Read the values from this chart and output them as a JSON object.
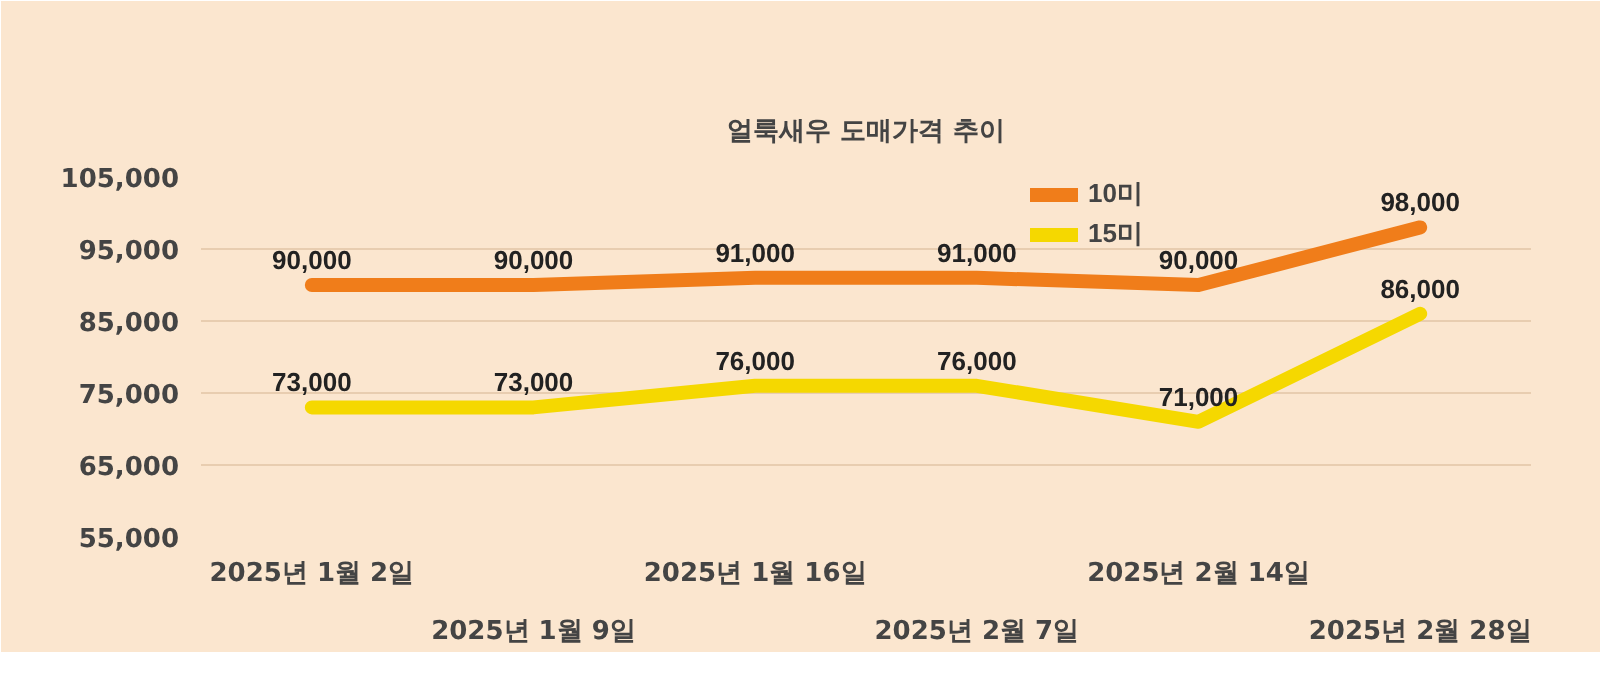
{
  "chart_data": {
    "type": "line",
    "title": "얼룩새우 도매가격 추이",
    "categories": [
      "2025년 1월 2일",
      "2025년 1월 9일",
      "2025년 1월 16일",
      "2025년 2월 7일",
      "2025년 2월 14일",
      "2025년 2월 28일"
    ],
    "series": [
      {
        "name": "10미",
        "color": "#f07d1a",
        "values": [
          90000,
          90000,
          91000,
          91000,
          90000,
          98000
        ],
        "value_labels": [
          "90,000",
          "90,000",
          "91,000",
          "91,000",
          "90,000",
          "98,000"
        ]
      },
      {
        "name": "15미",
        "color": "#f5d800",
        "values": [
          73000,
          73000,
          76000,
          76000,
          71000,
          86000
        ],
        "value_labels": [
          "73,000",
          "73,000",
          "76,000",
          "76,000",
          "71,000",
          "86,000"
        ]
      }
    ],
    "ylim": [
      55000,
      105000
    ],
    "yticks": [
      {
        "value": 55000,
        "label": "55,000"
      },
      {
        "value": 65000,
        "label": "65,000"
      },
      {
        "value": 75000,
        "label": "75,000"
      },
      {
        "value": 85000,
        "label": "85,000"
      },
      {
        "value": 95000,
        "label": "95,000"
      },
      {
        "value": 105000,
        "label": "105,000"
      }
    ],
    "grid": "y",
    "data_labels": true,
    "legend": "top right",
    "marker": "none",
    "line_style": "solid"
  }
}
